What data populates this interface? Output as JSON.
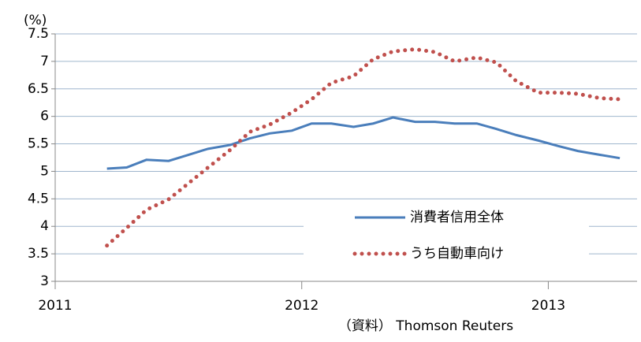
{
  "chart_data": {
    "type": "line",
    "unit_label": "(%)",
    "source": "（資料） Thomson Reuters",
    "x": [
      2011.21,
      2011.29,
      2011.37,
      2011.46,
      2011.54,
      2011.62,
      2011.71,
      2011.79,
      2011.87,
      2011.96,
      2012.04,
      2012.12,
      2012.21,
      2012.29,
      2012.37,
      2012.46,
      2012.54,
      2012.62,
      2012.71,
      2012.79,
      2012.87,
      2012.96,
      2013.04,
      2013.12,
      2013.21,
      2013.29
    ],
    "series": [
      {
        "name": "消費者信用全体",
        "color": "#4a7ebb",
        "style": "solid",
        "values": [
          5.05,
          5.07,
          5.21,
          5.19,
          5.3,
          5.41,
          5.48,
          5.6,
          5.69,
          5.74,
          5.87,
          5.87,
          5.81,
          5.87,
          5.98,
          5.9,
          5.9,
          5.87,
          5.87,
          5.77,
          5.66,
          5.56,
          5.46,
          5.37,
          5.3,
          5.24
        ]
      },
      {
        "name": "うち自動車向け",
        "color": "#c0504d",
        "style": "dotted",
        "values": [
          3.65,
          3.97,
          4.3,
          4.49,
          4.78,
          5.07,
          5.39,
          5.72,
          5.85,
          6.07,
          6.31,
          6.61,
          6.73,
          7.04,
          7.18,
          7.22,
          7.17,
          7.0,
          7.07,
          6.98,
          6.64,
          6.43,
          6.43,
          6.41,
          6.33,
          6.31
        ]
      }
    ],
    "xlim": [
      2011,
      2013.36
    ],
    "xticks": [
      2011,
      2012,
      2013
    ],
    "ylim": [
      3,
      7.5
    ],
    "yticks": [
      3,
      3.5,
      4,
      4.5,
      5,
      5.5,
      6,
      6.5,
      7,
      7.5
    ],
    "grid": true,
    "legend": "lower-right"
  }
}
